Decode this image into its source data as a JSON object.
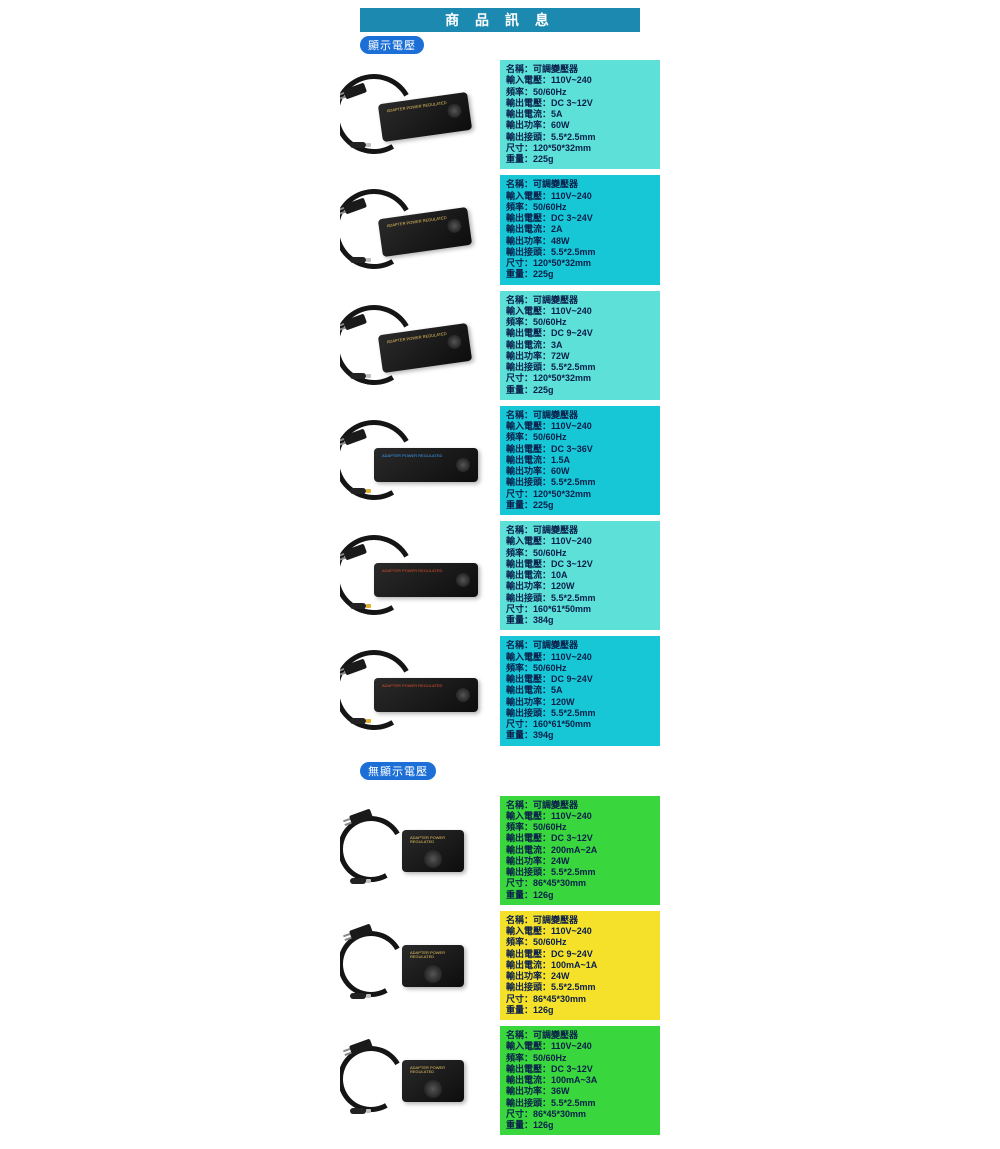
{
  "header": {
    "title": "商 品 訊 息"
  },
  "section1": {
    "tag": "顯示電壓"
  },
  "section2": {
    "tag": "無顯示電壓"
  },
  "labels": {
    "name": "名稱：",
    "in_v": "輸入電壓：",
    "freq": "頻率：",
    "out_v": "輸出電壓：",
    "out_a": "輸出電流：",
    "out_w": "輸出功率：",
    "conn": "輸出接頭：",
    "size": "尺寸：",
    "weight": "重量："
  },
  "styling": {
    "header_bg": "#1c8ab0",
    "tag_bg": "#1c6fd6",
    "row_font_size": 9,
    "text_color": "#0a1e4a"
  },
  "palette": {
    "teal_light": "#5ce0d8",
    "teal_dark": "#18c7d6",
    "green": "#39d63e",
    "yellow": "#f5e12a"
  },
  "products_display": [
    {
      "bg": "#5ce0d8",
      "name": "可調變壓器",
      "in_v": "110V~240",
      "freq": "50/60Hz",
      "out_v": "DC 3~12V",
      "out_a": "5A",
      "out_w": "60W",
      "conn": "5.5*2.5mm",
      "size": "120*50*32mm",
      "weight": "225g",
      "img": {
        "tip": "silver",
        "label_color": "#e8c060"
      }
    },
    {
      "bg": "#18c7d6",
      "name": "可調變壓器",
      "in_v": "110V~240",
      "freq": "50/60Hz",
      "out_v": "DC 3~24V",
      "out_a": "2A",
      "out_w": "48W",
      "conn": "5.5*2.5mm",
      "size": "120*50*32mm",
      "weight": "225g",
      "img": {
        "tip": "silver",
        "label_color": "#e8c060"
      }
    },
    {
      "bg": "#5ce0d8",
      "name": "可調變壓器",
      "in_v": "110V~240",
      "freq": "50/60Hz",
      "out_v": "DC 9~24V",
      "out_a": "3A",
      "out_w": "72W",
      "conn": "5.5*2.5mm",
      "size": "120*50*32mm",
      "weight": "225g",
      "img": {
        "tip": "silver",
        "label_color": "#e8c060"
      }
    },
    {
      "bg": "#18c7d6",
      "name": "可調變壓器",
      "in_v": "110V~240",
      "freq": "50/60Hz",
      "out_v": "DC 3~36V",
      "out_a": "1.5A",
      "out_w": "60W",
      "conn": "5.5*2.5mm",
      "size": "120*50*32mm",
      "weight": "225g",
      "img": {
        "tip": "gold",
        "label_color": "#3aa0ff",
        "flat": true
      }
    },
    {
      "bg": "#5ce0d8",
      "name": "可調變壓器",
      "in_v": "110V~240",
      "freq": "50/60Hz",
      "out_v": "DC 3~12V",
      "out_a": "10A",
      "out_w": "120W",
      "conn": "5.5*2.5mm",
      "size": "160*61*50mm",
      "weight": "384g",
      "img": {
        "tip": "gold",
        "label_color": "#e05028",
        "flat": true
      }
    },
    {
      "bg": "#18c7d6",
      "name": "可調變壓器",
      "in_v": "110V~240",
      "freq": "50/60Hz",
      "out_v": "DC 9~24V",
      "out_a": "5A",
      "out_w": "120W",
      "conn": "5.5*2.5mm",
      "size": "160*61*50mm",
      "weight": "394g",
      "img": {
        "tip": "gold",
        "label_color": "#e05028",
        "flat": true
      }
    }
  ],
  "products_nodisplay": [
    {
      "bg": "#39d63e",
      "name": "可調變壓器",
      "in_v": "110V~240",
      "freq": "50/60Hz",
      "out_v": "DC 3~12V",
      "out_a": "200mA~2A",
      "out_w": "24W",
      "conn": "5.5*2.5mm",
      "size": "86*45*30mm",
      "weight": "126g",
      "img": {
        "tip": "silver",
        "compact": true
      }
    },
    {
      "bg": "#f5e12a",
      "name": "可調變壓器",
      "in_v": "110V~240",
      "freq": "50/60Hz",
      "out_v": "DC 9~24V",
      "out_a": "100mA~1A",
      "out_w": "24W",
      "conn": "5.5*2.5mm",
      "size": "86*45*30mm",
      "weight": "126g",
      "img": {
        "tip": "silver",
        "compact": true
      }
    },
    {
      "bg": "#39d63e",
      "name": "可調變壓器",
      "in_v": "110V~240",
      "freq": "50/60Hz",
      "out_v": "DC 3~12V",
      "out_a": "100mA~3A",
      "out_w": "36W",
      "conn": "5.5*2.5mm",
      "size": "86*45*30mm",
      "weight": "126g",
      "img": {
        "tip": "silver",
        "compact": true
      }
    }
  ]
}
